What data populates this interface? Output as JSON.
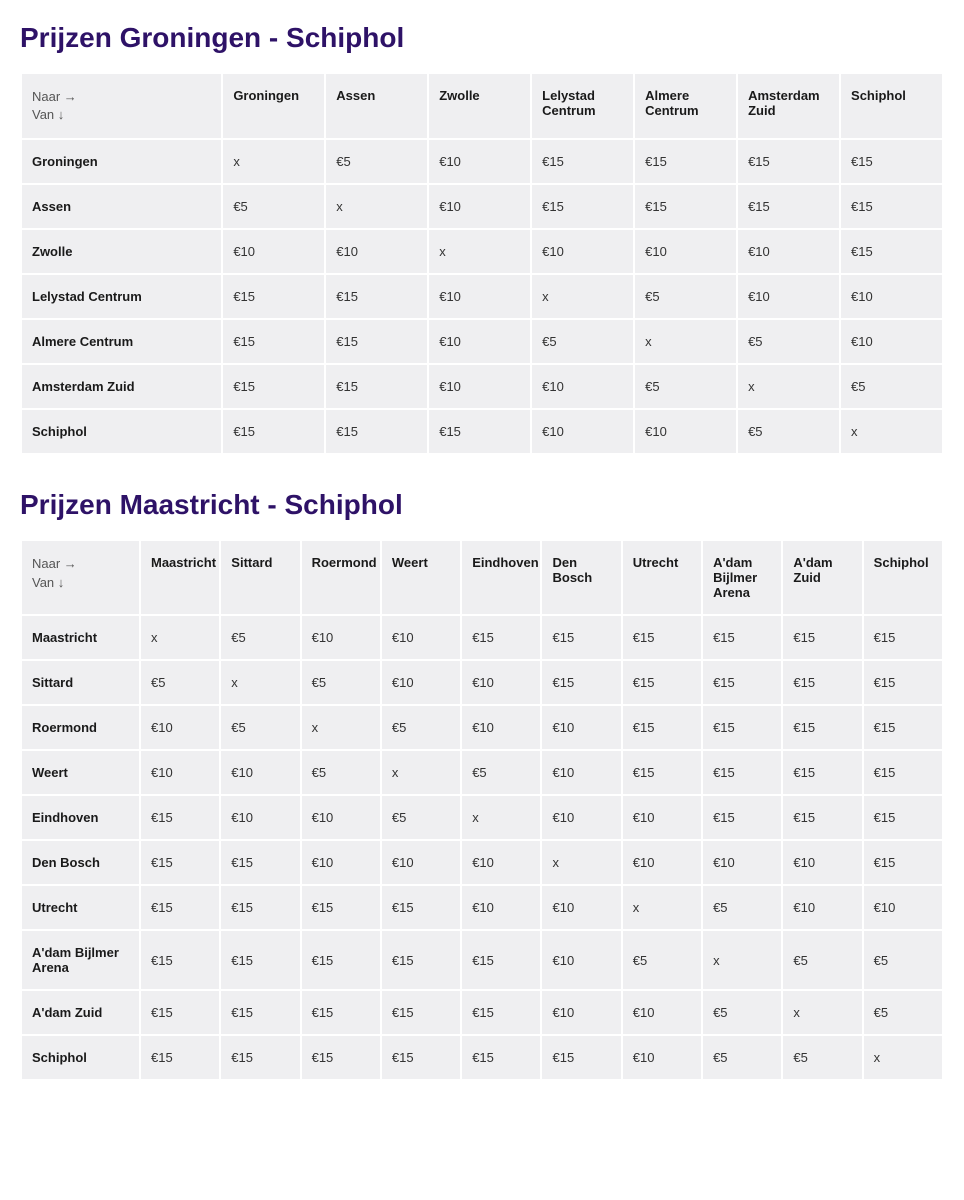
{
  "labels": {
    "corner_to": "Naar →",
    "corner_from": "Van ↓"
  },
  "tables": [
    {
      "title": "Prijzen Groningen - Schiphol",
      "columns": [
        "Groningen",
        "Assen",
        "Zwolle",
        "Lelystad Centrum",
        "Almere Centrum",
        "Amsterdam Zuid",
        "Schiphol"
      ],
      "rows": [
        {
          "label": "Groningen",
          "cells": [
            "x",
            "€5",
            "€10",
            "€15",
            "€15",
            "€15",
            "€15"
          ]
        },
        {
          "label": "Assen",
          "cells": [
            "€5",
            "x",
            "€10",
            "€15",
            "€15",
            "€15",
            "€15"
          ]
        },
        {
          "label": "Zwolle",
          "cells": [
            "€10",
            "€10",
            "x",
            "€10",
            "€10",
            "€10",
            "€15"
          ]
        },
        {
          "label": "Lelystad Centrum",
          "cells": [
            "€15",
            "€15",
            "€10",
            "x",
            "€5",
            "€10",
            "€10"
          ]
        },
        {
          "label": "Almere Centrum",
          "cells": [
            "€15",
            "€15",
            "€10",
            "€5",
            "x",
            "€5",
            "€10"
          ]
        },
        {
          "label": "Amsterdam Zuid",
          "cells": [
            "€15",
            "€15",
            "€10",
            "€10",
            "€5",
            "x",
            "€5"
          ]
        },
        {
          "label": "Schiphol",
          "cells": [
            "€15",
            "€15",
            "€15",
            "€10",
            "€10",
            "€5",
            "x"
          ]
        }
      ],
      "first_col_width": "22%"
    },
    {
      "title": "Prijzen Maastricht - Schiphol",
      "columns": [
        "Maastricht",
        "Sittard",
        "Roermond",
        "Weert",
        "Eindhoven",
        "Den Bosch",
        "Utrecht",
        "A'dam Bijlmer Arena",
        "A'dam Zuid",
        "Schiphol"
      ],
      "rows": [
        {
          "label": "Maastricht",
          "cells": [
            "x",
            "€5",
            "€10",
            "€10",
            "€15",
            "€15",
            "€15",
            "€15",
            "€15",
            "€15"
          ]
        },
        {
          "label": "Sittard",
          "cells": [
            "€5",
            "x",
            "€5",
            "€10",
            "€10",
            "€15",
            "€15",
            "€15",
            "€15",
            "€15"
          ]
        },
        {
          "label": "Roermond",
          "cells": [
            "€10",
            "€5",
            "x",
            "€5",
            "€10",
            "€10",
            "€15",
            "€15",
            "€15",
            "€15"
          ]
        },
        {
          "label": "Weert",
          "cells": [
            "€10",
            "€10",
            "€5",
            "x",
            "€5",
            "€10",
            "€15",
            "€15",
            "€15",
            "€15"
          ]
        },
        {
          "label": "Eindhoven",
          "cells": [
            "€15",
            "€10",
            "€10",
            "€5",
            "x",
            "€10",
            "€10",
            "€15",
            "€15",
            "€15"
          ]
        },
        {
          "label": "Den Bosch",
          "cells": [
            "€15",
            "€15",
            "€10",
            "€10",
            "€10",
            "x",
            "€10",
            "€10",
            "€10",
            "€15"
          ]
        },
        {
          "label": "Utrecht",
          "cells": [
            "€15",
            "€15",
            "€15",
            "€15",
            "€10",
            "€10",
            "x",
            "€5",
            "€10",
            "€10"
          ]
        },
        {
          "label": "A'dam Bijlmer Arena",
          "cells": [
            "€15",
            "€15",
            "€15",
            "€15",
            "€15",
            "€10",
            "€5",
            "x",
            "€5",
            "€5"
          ]
        },
        {
          "label": "A'dam Zuid",
          "cells": [
            "€15",
            "€15",
            "€15",
            "€15",
            "€15",
            "€10",
            "€10",
            "€5",
            "x",
            "€5"
          ]
        },
        {
          "label": "Schiphol",
          "cells": [
            "€15",
            "€15",
            "€15",
            "€15",
            "€15",
            "€15",
            "€10",
            "€5",
            "€5",
            "x"
          ]
        }
      ],
      "first_col_width": "13%"
    }
  ],
  "style": {
    "title_color": "#2e1267",
    "cell_bg": "#efeff1",
    "page_bg": "#ffffff",
    "font_size_cell": 13,
    "font_size_title": 28
  }
}
